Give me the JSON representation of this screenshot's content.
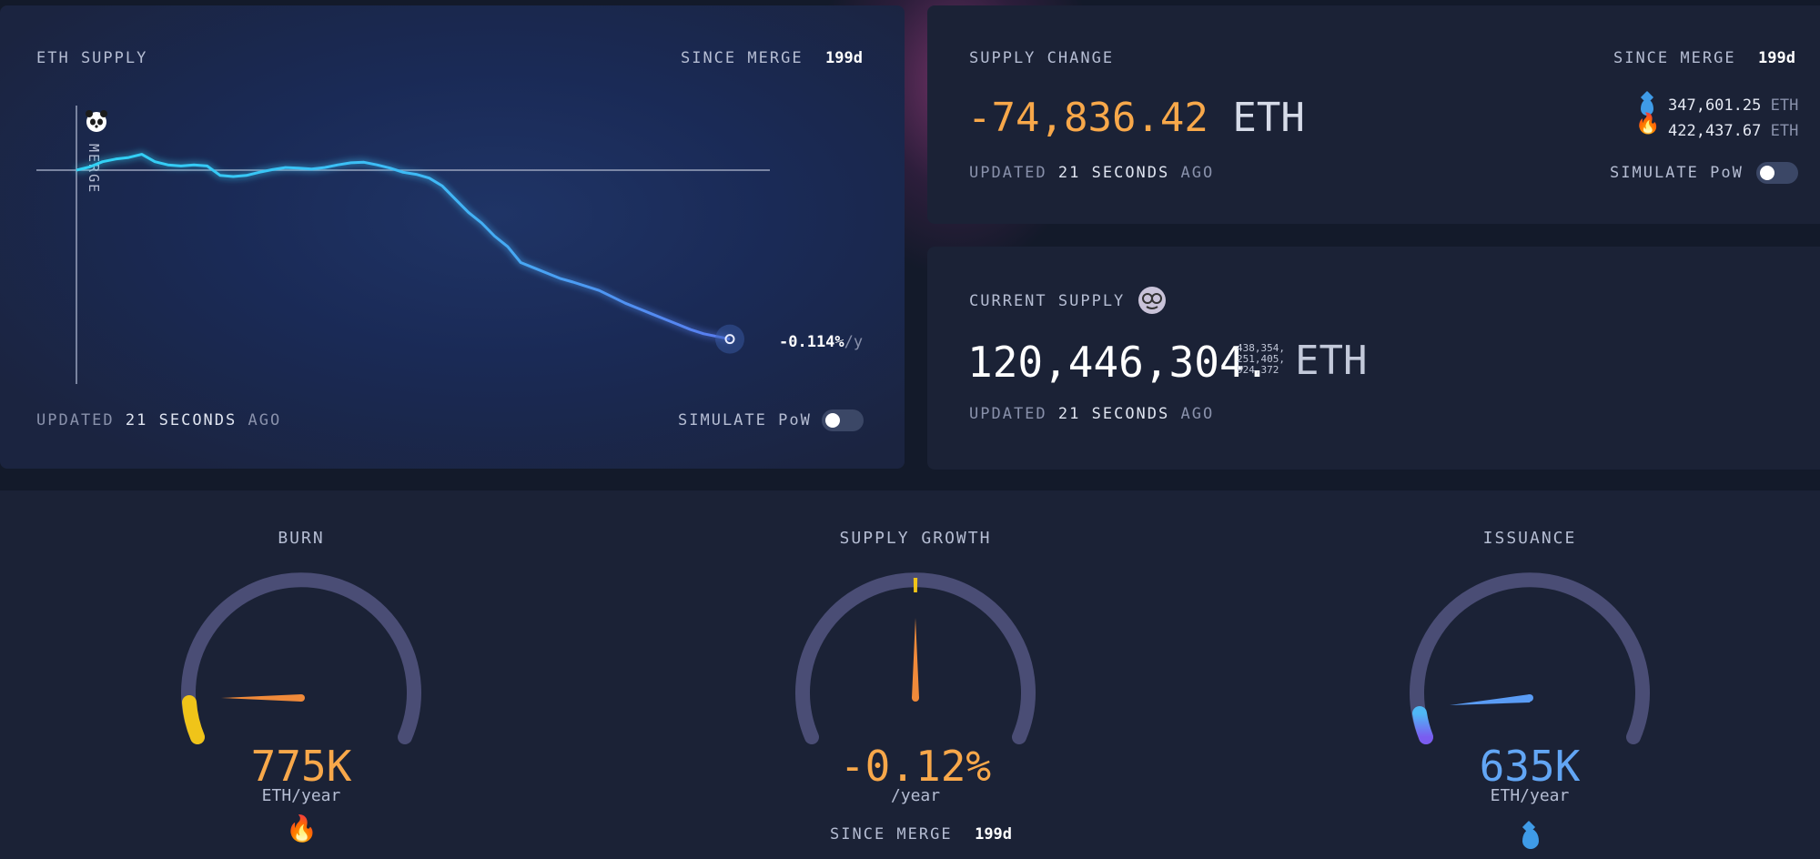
{
  "eth_supply_card": {
    "title": "ETH SUPPLY",
    "since_label": "SINCE MERGE",
    "since_value": "199d",
    "merge_label": "MERGE",
    "end_value": "-0.114%",
    "end_unit": "/y",
    "updated_prefix": "UPDATED",
    "updated_value": "21 SECONDS",
    "updated_suffix": "AGO",
    "simulate_label": "SIMULATE PoW"
  },
  "supply_change_card": {
    "title": "SUPPLY CHANGE",
    "since_label": "SINCE MERGE",
    "since_value": "199d",
    "value": "-74,836.42",
    "unit": "ETH",
    "issued_value": "347,601.25",
    "issued_unit": "ETH",
    "burned_value": "422,437.67",
    "burned_unit": "ETH",
    "updated_prefix": "UPDATED",
    "updated_value": "21 SECONDS",
    "updated_suffix": "AGO",
    "simulate_label": "SIMULATE PoW"
  },
  "current_supply_card": {
    "title": "CURRENT SUPPLY",
    "value_main": "120,446,304.",
    "value_decimals_1": "438,354,",
    "value_decimals_2": "251,405,",
    "value_decimals_3": "924,372",
    "unit": "ETH",
    "updated_prefix": "UPDATED",
    "updated_value": "21 SECONDS",
    "updated_suffix": "AGO"
  },
  "gauges": {
    "burn": {
      "title": "BURN",
      "value": "775K",
      "unit": "ETH/year",
      "level": 0.05
    },
    "supply_growth": {
      "title": "SUPPLY GROWTH",
      "value": "-0.12%",
      "unit": "/year",
      "since_label": "SINCE MERGE",
      "since_value": "199d",
      "level": 0.5
    },
    "issuance": {
      "title": "ISSUANCE",
      "value": "635K",
      "unit": "ETH/year",
      "level": 0.08
    }
  },
  "colors": {
    "accent_orange": "#f8a84a",
    "accent_blue": "#62a6f5",
    "gauge_track": "#4a4d75",
    "burn_yellow": "#f0c419"
  },
  "chart_data": {
    "type": "line",
    "title": "ETH SUPPLY",
    "xlabel": "",
    "ylabel": "",
    "reference_line_label": "MERGE",
    "x": [
      0,
      2,
      4,
      6,
      8,
      10,
      12,
      14,
      16,
      18,
      20,
      22,
      24,
      26,
      28,
      30,
      32,
      34,
      36,
      38,
      40,
      42,
      44,
      46,
      48,
      50,
      52,
      54,
      56,
      58,
      60,
      62,
      64,
      66,
      68,
      70,
      72,
      74,
      76,
      78,
      80,
      82,
      84,
      86,
      88,
      90,
      92,
      94,
      96,
      98,
      100
    ],
    "values": [
      0.0,
      0.06,
      0.16,
      0.21,
      0.24,
      0.3,
      0.16,
      0.1,
      0.08,
      0.1,
      0.08,
      -0.1,
      -0.12,
      -0.1,
      -0.04,
      0.01,
      0.05,
      0.04,
      0.02,
      0.05,
      0.1,
      0.14,
      0.15,
      0.1,
      0.04,
      -0.04,
      -0.08,
      -0.15,
      -0.3,
      -0.55,
      -0.8,
      -1.0,
      -1.25,
      -1.45,
      -1.75,
      -1.85,
      -1.95,
      -2.05,
      -2.12,
      -2.2,
      -2.28,
      -2.4,
      -2.52,
      -2.62,
      -2.72,
      -2.82,
      -2.92,
      -3.02,
      -3.1,
      -3.15,
      -3.2
    ],
    "end_label": "-0.114%/y",
    "grid": false
  }
}
